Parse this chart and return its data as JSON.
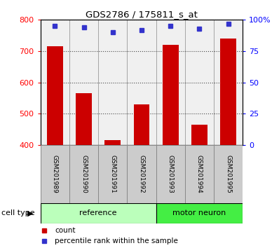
{
  "title": "GDS2786 / 175811_s_at",
  "samples": [
    "GSM201989",
    "GSM201990",
    "GSM201991",
    "GSM201992",
    "GSM201993",
    "GSM201994",
    "GSM201995"
  ],
  "counts": [
    715,
    565,
    415,
    530,
    720,
    465,
    740
  ],
  "percentiles": [
    95,
    94,
    90,
    92,
    95,
    93,
    97
  ],
  "ylim_left": [
    400,
    800
  ],
  "ylim_right": [
    0,
    100
  ],
  "yticks_left": [
    400,
    500,
    600,
    700,
    800
  ],
  "yticks_right": [
    0,
    25,
    50,
    75,
    100
  ],
  "yticklabels_right": [
    "0",
    "25",
    "50",
    "75",
    "100%"
  ],
  "bar_color": "#cc0000",
  "dot_color": "#3333cc",
  "groups": [
    {
      "label": "reference",
      "indices": [
        0,
        1,
        2,
        3
      ],
      "color": "#bbffbb"
    },
    {
      "label": "motor neuron",
      "indices": [
        4,
        5,
        6
      ],
      "color": "#44ee44"
    }
  ],
  "cell_type_label": "cell type",
  "legend_items": [
    {
      "color": "#cc0000",
      "label": "count"
    },
    {
      "color": "#3333cc",
      "label": "percentile rank within the sample"
    }
  ],
  "background_color": "#ffffff",
  "plot_bg_color": "#f0f0f0",
  "bar_bottom": 400,
  "sample_box_color": "#cccccc",
  "sample_box_edge": "#888888"
}
